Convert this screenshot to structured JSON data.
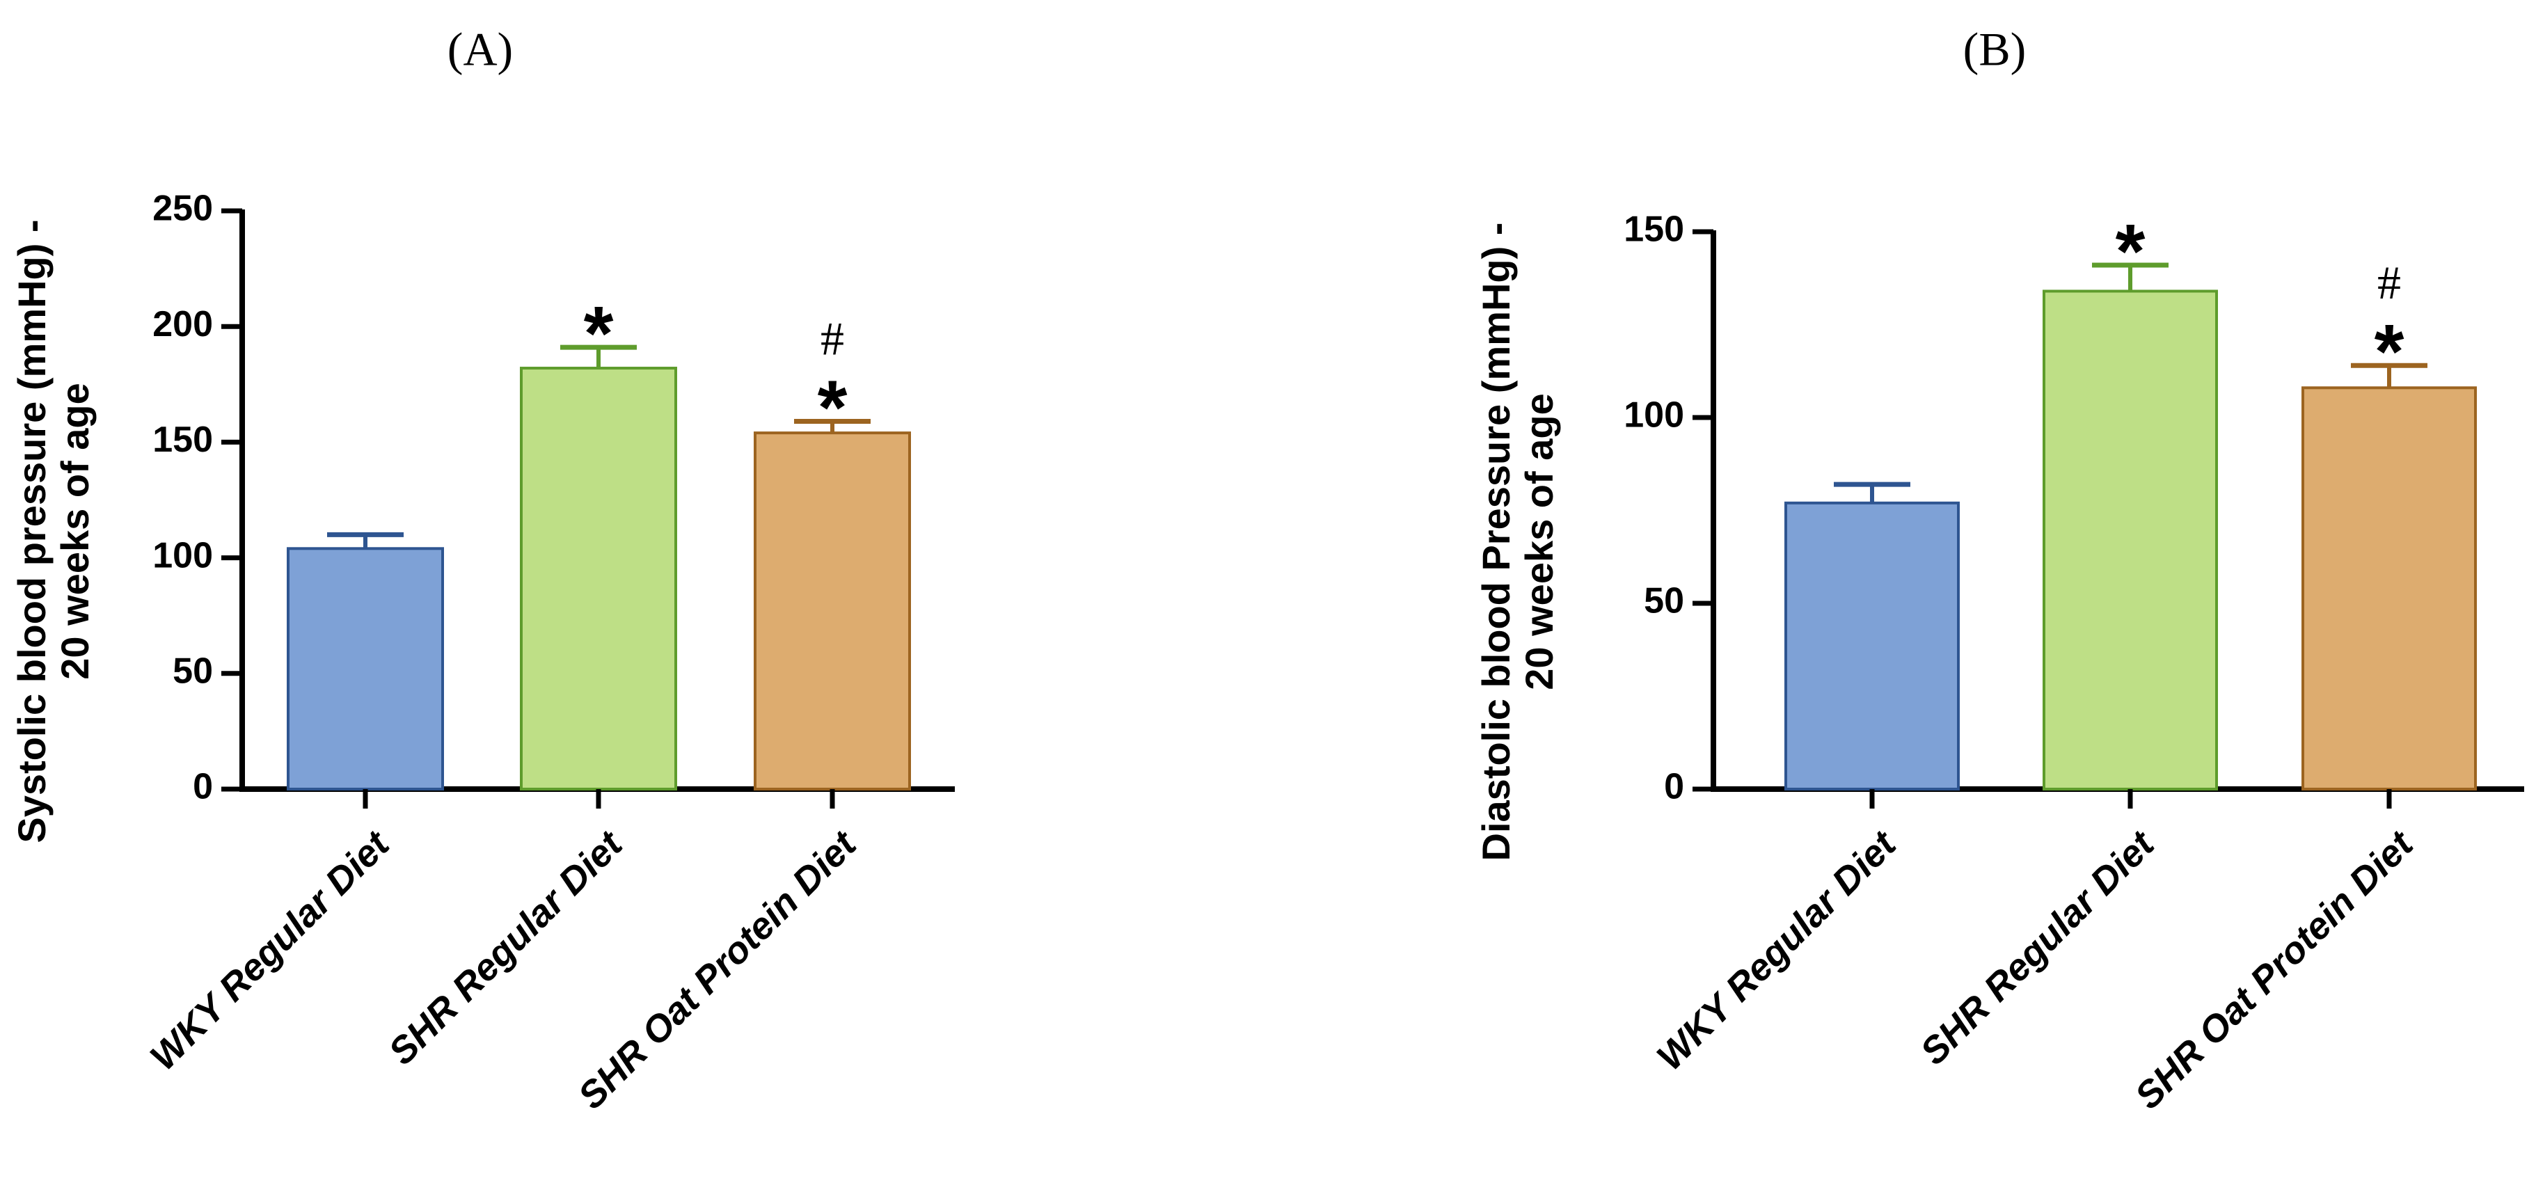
{
  "chart_data": [
    {
      "panel": "(A)",
      "type": "bar",
      "ylabel_lines": [
        "Systolic blood pressure (mmHg) -",
        "20 weeks of age"
      ],
      "categories": [
        "WKY Regular Diet",
        "SHR Regular Diet",
        "SHR Oat Protein Diet"
      ],
      "values": [
        104,
        182,
        154
      ],
      "error_upper": [
        110,
        191,
        159
      ],
      "significance": [
        [],
        [
          "*"
        ],
        [
          "*",
          "#"
        ]
      ],
      "ylim": [
        0,
        250
      ],
      "yticks": [
        0,
        50,
        100,
        150,
        200,
        250
      ],
      "grid": false,
      "legend": "none",
      "colors": [
        {
          "fill": "#7ea1d6",
          "stroke": "#2e5591"
        },
        {
          "fill": "#bedf86",
          "stroke": "#5e9c2c"
        },
        {
          "fill": "#ddac6f",
          "stroke": "#9c6420"
        }
      ]
    },
    {
      "panel": "(B)",
      "type": "bar",
      "ylabel_lines": [
        "Diastolic blood Pressure (mmHg) -",
        "20 weeks of age"
      ],
      "categories": [
        "WKY Regular Diet",
        "SHR Regular Diet",
        "SHR Oat Protein Diet"
      ],
      "values": [
        77,
        134,
        108
      ],
      "error_upper": [
        82,
        141,
        114
      ],
      "significance": [
        [],
        [
          "*"
        ],
        [
          "*",
          "#"
        ]
      ],
      "ylim": [
        0,
        150
      ],
      "yticks": [
        0,
        50,
        100,
        150
      ],
      "grid": false,
      "legend": "none",
      "colors": [
        {
          "fill": "#7ea1d6",
          "stroke": "#2e5591"
        },
        {
          "fill": "#bedf86",
          "stroke": "#5e9c2c"
        },
        {
          "fill": "#ddac6f",
          "stroke": "#9c6420"
        }
      ]
    }
  ]
}
